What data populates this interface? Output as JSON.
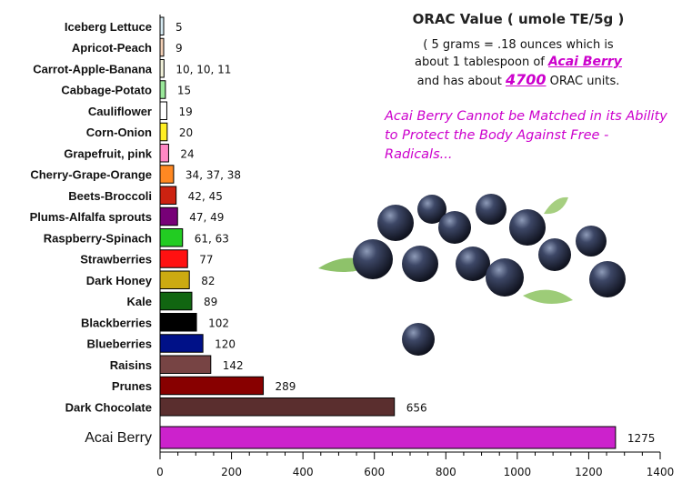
{
  "title": "ORAC Value ( umole TE/5g )",
  "note": {
    "line1": "( 5 grams = .18 ounces which is",
    "line2_prefix": "about 1 tablespoon of",
    "line2_link": "Acai Berry",
    "line3_prefix": "and has about",
    "line3_value": "4700",
    "line3_suffix": "ORAC units."
  },
  "tagline": "Acai Berry Cannot be Matched in its Ability to Protect the Body Against Free - Radicals...",
  "photo": {
    "subject": "acai berries with leaves",
    "icon": "berries-photo"
  },
  "chart_data": {
    "type": "bar",
    "orientation": "horizontal",
    "xlim": [
      0,
      1400
    ],
    "xticks": [
      0,
      200,
      400,
      600,
      800,
      1000,
      1200,
      1400
    ],
    "grid": false,
    "categories": [
      "Iceberg Lettuce",
      "Apricot-Peach",
      "Carrot-Apple-Banana",
      "Cabbage-Potato",
      "Cauliflower",
      "Corn-Onion",
      "Grapefruit, pink",
      "Cherry-Grape-Orange",
      "Beets-Broccoli",
      "Plums-Alfalfa sprouts",
      "Raspberry-Spinach",
      "Strawberries",
      "Dark Honey",
      "Kale",
      "Blackberries",
      "Blueberries",
      "Raisins",
      "Prunes",
      "Dark Chocolate",
      "Acai Berry"
    ],
    "values": [
      5,
      9,
      11,
      15,
      19,
      20,
      24,
      38,
      45,
      49,
      63,
      77,
      82,
      89,
      102,
      120,
      142,
      289,
      656,
      1275
    ],
    "value_labels": [
      "5",
      "9",
      "10, 10, 11",
      "15",
      "19",
      "20",
      "24",
      "34, 37, 38",
      "42, 45",
      "47, 49",
      "61, 63",
      "77",
      "82",
      "89",
      "102",
      "120",
      "142",
      "289",
      "656",
      "1275"
    ],
    "colors": [
      "#d8ecf4",
      "#f5d2b8",
      "#f2f2da",
      "#9ae89a",
      "#ffffff",
      "#ffee22",
      "#ff88c4",
      "#ff8822",
      "#cc2211",
      "#770077",
      "#22cc22",
      "#ff1111",
      "#ccaa11",
      "#116611",
      "#000000",
      "#001188",
      "#774444",
      "#880000",
      "#5a2e2e",
      "#cc22cc"
    ],
    "highlight_index": 19,
    "highlight_color": "#cc00cc"
  }
}
